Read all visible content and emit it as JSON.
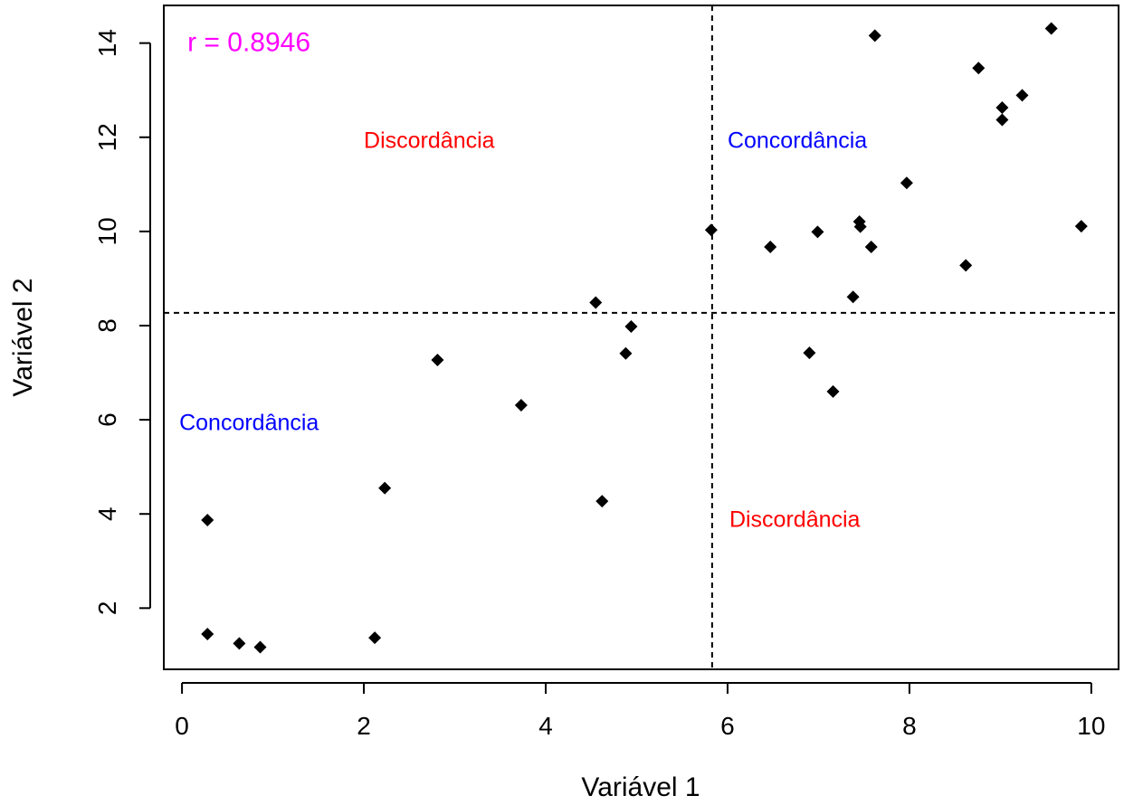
{
  "chart_data": {
    "type": "scatter",
    "xlabel": "Variável 1",
    "ylabel": "Variável 2",
    "xlim": [
      -0.2,
      10.3
    ],
    "ylim": [
      0.7,
      14.8
    ],
    "xticks": [
      0,
      2,
      4,
      6,
      8,
      10
    ],
    "yticks": [
      2,
      4,
      6,
      8,
      10,
      12,
      14
    ],
    "grid": false,
    "reference_lines": {
      "x": 5.83,
      "y": 8.27,
      "style": "dashed"
    },
    "annotations": [
      {
        "text": "r = 0.8946",
        "x": 0.06,
        "y": 14.0,
        "color": "#ff00ff",
        "kind": "stat"
      },
      {
        "text": "Discordância",
        "x": 2.0,
        "y": 11.95,
        "color": "#ff0000",
        "kind": "quadrant"
      },
      {
        "text": "Concordância",
        "x": 6.0,
        "y": 11.95,
        "color": "#0000ff",
        "kind": "quadrant"
      },
      {
        "text": "Concordância",
        "x": -0.03,
        "y": 5.95,
        "color": "#0000ff",
        "kind": "quadrant"
      },
      {
        "text": "Discordância",
        "x": 6.02,
        "y": 3.9,
        "color": "#ff0000",
        "kind": "quadrant"
      }
    ],
    "points": [
      {
        "x": 0.28,
        "y": 3.87
      },
      {
        "x": 0.28,
        "y": 1.45
      },
      {
        "x": 0.63,
        "y": 1.25
      },
      {
        "x": 0.86,
        "y": 1.17
      },
      {
        "x": 2.12,
        "y": 1.37
      },
      {
        "x": 2.23,
        "y": 4.55
      },
      {
        "x": 2.81,
        "y": 7.27
      },
      {
        "x": 3.73,
        "y": 6.31
      },
      {
        "x": 4.55,
        "y": 8.49
      },
      {
        "x": 4.62,
        "y": 4.27
      },
      {
        "x": 4.88,
        "y": 7.41
      },
      {
        "x": 4.94,
        "y": 7.98
      },
      {
        "x": 5.82,
        "y": 10.03
      },
      {
        "x": 6.47,
        "y": 9.67
      },
      {
        "x": 6.9,
        "y": 7.42
      },
      {
        "x": 6.99,
        "y": 9.99
      },
      {
        "x": 7.16,
        "y": 6.6
      },
      {
        "x": 7.38,
        "y": 8.61
      },
      {
        "x": 7.45,
        "y": 10.21
      },
      {
        "x": 7.46,
        "y": 10.1
      },
      {
        "x": 7.58,
        "y": 9.67
      },
      {
        "x": 7.62,
        "y": 14.16
      },
      {
        "x": 7.97,
        "y": 11.03
      },
      {
        "x": 8.62,
        "y": 9.28
      },
      {
        "x": 8.76,
        "y": 13.47
      },
      {
        "x": 9.02,
        "y": 12.63
      },
      {
        "x": 9.02,
        "y": 12.37
      },
      {
        "x": 9.24,
        "y": 12.89
      },
      {
        "x": 9.56,
        "y": 14.31
      },
      {
        "x": 9.89,
        "y": 10.11
      }
    ],
    "marker_color": "#000000"
  }
}
